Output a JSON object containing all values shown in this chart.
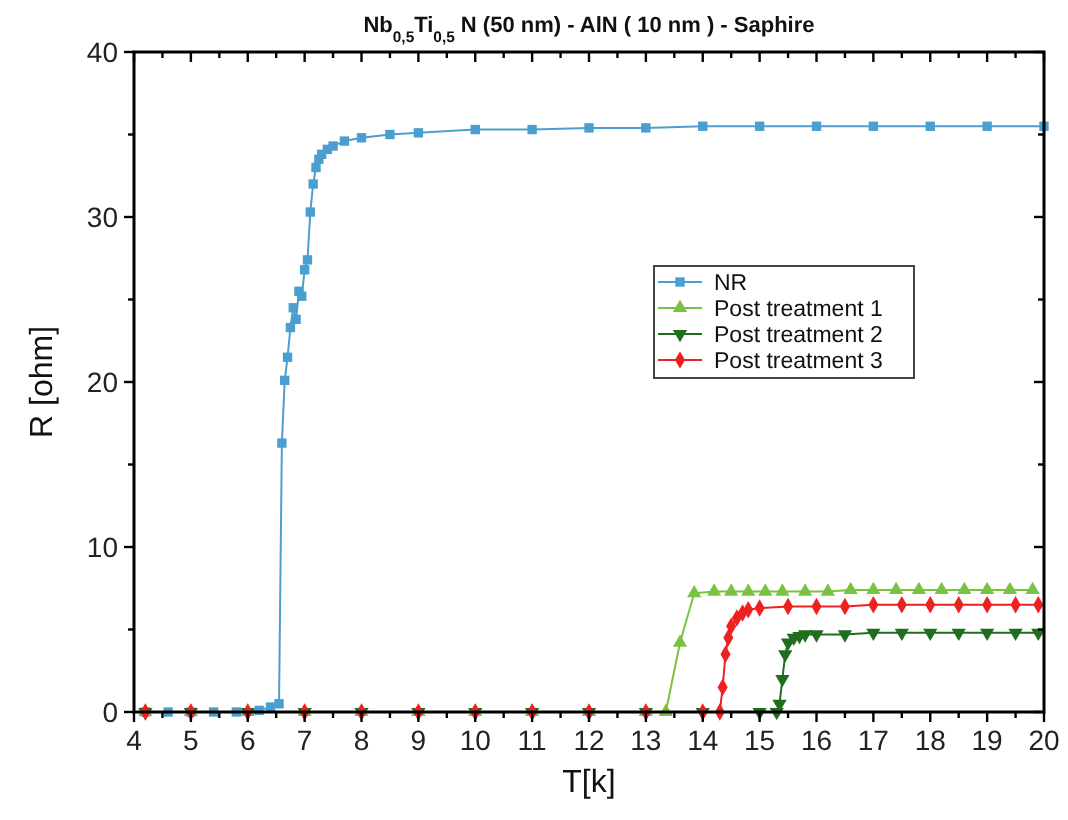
{
  "chart_data": {
    "type": "line",
    "title": "Nb$_{0,5}$Ti$_{0,5}$ N (50 nm)  - AlN ( 10 nm ) - Saphire",
    "xlabel": "T[k]",
    "ylabel": "R [ohm]",
    "xlim": [
      4,
      20
    ],
    "xticks": [
      4,
      5,
      6,
      7,
      8,
      9,
      10,
      11,
      12,
      13,
      14,
      15,
      16,
      17,
      18,
      19,
      20
    ],
    "ylim": [
      0,
      40
    ],
    "yticks": [
      0,
      10,
      20,
      30,
      40
    ],
    "grid": false,
    "legend": "right",
    "series": [
      {
        "name": "NR",
        "color": "#4a9fd0",
        "marker": "square",
        "x": [
          4.2,
          4.6,
          5,
          5.4,
          5.8,
          6.2,
          6.4,
          6.55,
          6.6,
          6.65,
          6.7,
          6.75,
          6.8,
          6.85,
          6.9,
          6.95,
          7,
          7.05,
          7.1,
          7.15,
          7.2,
          7.25,
          7.3,
          7.4,
          7.5,
          7.7,
          8,
          8.5,
          9,
          10,
          11,
          12,
          13,
          14,
          15,
          16,
          17,
          18,
          19,
          20
        ],
        "values": [
          0,
          0,
          0,
          0,
          0,
          0.1,
          0.3,
          0.5,
          16.3,
          20.1,
          21.5,
          23.3,
          24.5,
          23.8,
          25.5,
          25.2,
          26.8,
          27.4,
          30.3,
          32,
          33,
          33.5,
          33.8,
          34.1,
          34.3,
          34.6,
          34.8,
          35,
          35.1,
          35.3,
          35.3,
          35.4,
          35.4,
          35.5,
          35.5,
          35.5,
          35.5,
          35.5,
          35.5,
          35.5
        ]
      },
      {
        "name": "Post treatment 1",
        "color": "#7cc242",
        "marker": "triangle",
        "x": [
          4.2,
          5,
          6,
          7,
          8,
          9,
          10,
          11,
          12,
          13,
          13.35,
          13.6,
          13.85,
          14.2,
          14.5,
          14.8,
          15.1,
          15.4,
          15.8,
          16.2,
          16.6,
          17,
          17.4,
          17.8,
          18.2,
          18.6,
          19,
          19.4,
          19.8
        ],
        "values": [
          0,
          0,
          0,
          0,
          0,
          0,
          0,
          0,
          0,
          0,
          0,
          4.2,
          7.2,
          7.3,
          7.3,
          7.3,
          7.3,
          7.3,
          7.3,
          7.3,
          7.4,
          7.4,
          7.4,
          7.4,
          7.4,
          7.4,
          7.4,
          7.4,
          7.4
        ]
      },
      {
        "name": "Post treatment 2",
        "color": "#1f6e1f",
        "marker": "triangle-down",
        "x": [
          4.2,
          5,
          6,
          7,
          8,
          9,
          10,
          11,
          12,
          13,
          14,
          15,
          15.3,
          15.35,
          15.4,
          15.45,
          15.5,
          15.6,
          15.7,
          15.8,
          16,
          16.5,
          17,
          17.5,
          18,
          18.5,
          19,
          19.5,
          19.9
        ],
        "values": [
          0,
          0,
          0,
          0,
          0,
          0,
          0,
          0,
          0,
          0,
          0,
          0,
          0,
          0.5,
          2,
          3.5,
          4.2,
          4.5,
          4.6,
          4.7,
          4.7,
          4.7,
          4.8,
          4.8,
          4.8,
          4.8,
          4.8,
          4.8,
          4.8
        ]
      },
      {
        "name": "Post treatment 3",
        "color": "#ee2020",
        "marker": "diamond",
        "x": [
          4.2,
          5,
          6,
          7,
          8,
          9,
          10,
          11,
          12,
          13,
          14,
          14.3,
          14.35,
          14.4,
          14.45,
          14.5,
          14.6,
          14.7,
          14.8,
          15,
          15.5,
          16,
          16.5,
          17,
          17.5,
          18,
          18.5,
          19,
          19.5,
          19.9
        ],
        "values": [
          0,
          0,
          0,
          0,
          0,
          0,
          0,
          0,
          0,
          0,
          0,
          0,
          1.5,
          3.5,
          4.5,
          5.2,
          5.7,
          6,
          6.2,
          6.3,
          6.4,
          6.4,
          6.4,
          6.5,
          6.5,
          6.5,
          6.5,
          6.5,
          6.5,
          6.5
        ]
      }
    ]
  }
}
